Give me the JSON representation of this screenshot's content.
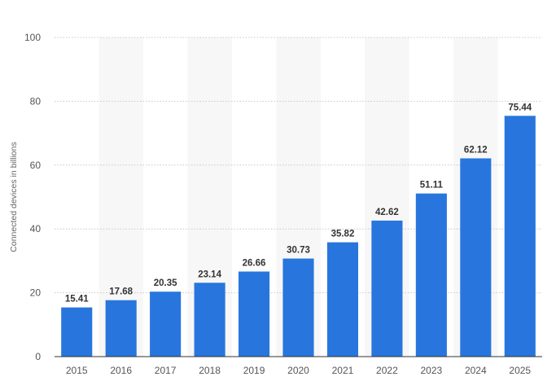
{
  "chart_data": {
    "type": "bar",
    "title": "",
    "xlabel": "",
    "ylabel": "Connected devices in billions",
    "categories": [
      "2015",
      "2016",
      "2017",
      "2018",
      "2019",
      "2020",
      "2021",
      "2022",
      "2023",
      "2024",
      "2025"
    ],
    "values": [
      15.41,
      17.68,
      20.35,
      23.14,
      26.66,
      30.73,
      35.82,
      42.62,
      51.11,
      62.12,
      75.44
    ],
    "value_labels": [
      "15.41",
      "17.68",
      "20.35",
      "23.14",
      "26.66",
      "30.73",
      "35.82",
      "42.62",
      "51.11",
      "62.12",
      "75.44"
    ],
    "ylim": [
      0,
      100
    ],
    "yticks": [
      0,
      20,
      40,
      60,
      80,
      100
    ],
    "ytick_labels": [
      "0",
      "20",
      "40",
      "60",
      "80",
      "100"
    ],
    "grid": true,
    "alternating_column_shading": true,
    "colors": {
      "bar": "#2876dd",
      "gridline": "#c8c8c8",
      "shade": "#f7f7f7",
      "baseline": "#333333"
    }
  }
}
